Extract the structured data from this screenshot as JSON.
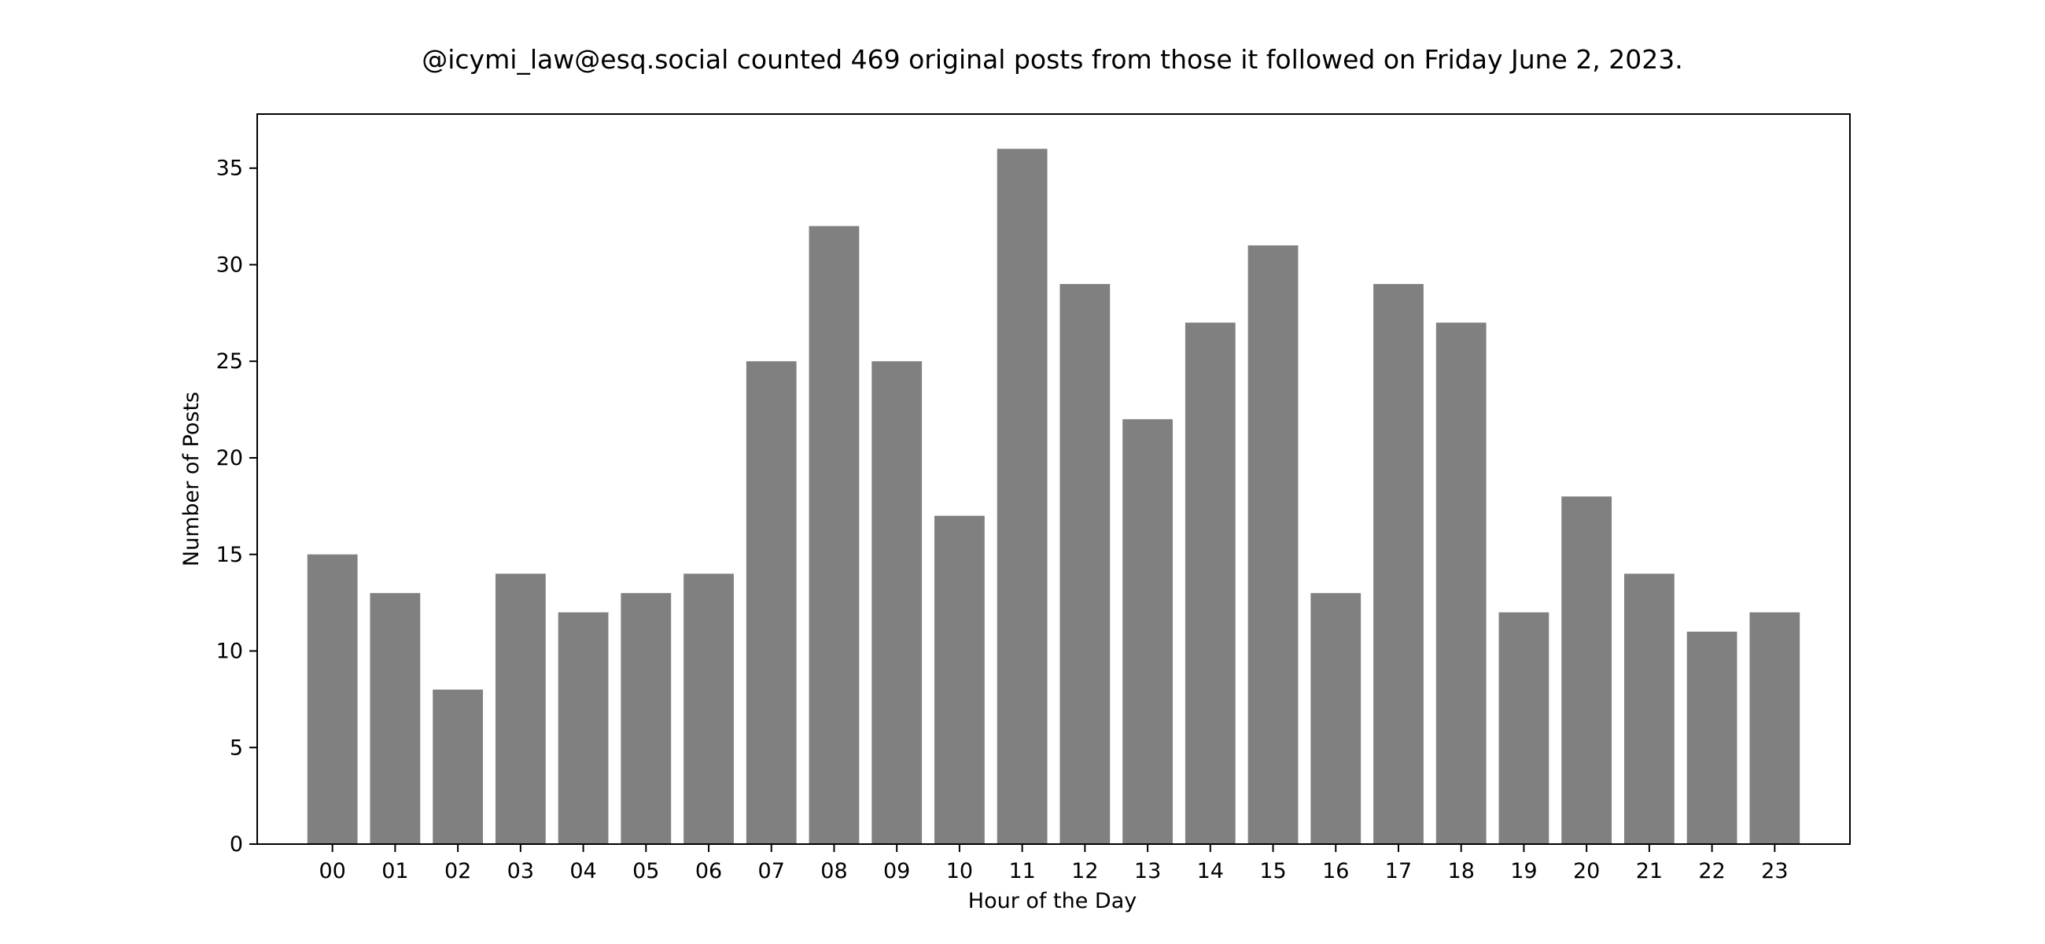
{
  "chart_data": {
    "type": "bar",
    "title": "@icymi_law@esq.social counted 469 original posts from those it followed on Friday June 2, 2023.",
    "xlabel": "Hour of the Day",
    "ylabel": "Number of Posts",
    "categories": [
      "00",
      "01",
      "02",
      "03",
      "04",
      "05",
      "06",
      "07",
      "08",
      "09",
      "10",
      "11",
      "12",
      "13",
      "14",
      "15",
      "16",
      "17",
      "18",
      "19",
      "20",
      "21",
      "22",
      "23"
    ],
    "values": [
      15,
      13,
      8,
      14,
      12,
      13,
      14,
      25,
      32,
      25,
      17,
      36,
      29,
      22,
      27,
      31,
      13,
      29,
      27,
      12,
      18,
      14,
      11,
      12
    ],
    "ylim": [
      0,
      37.8
    ],
    "yticks": [
      0,
      5,
      10,
      15,
      20,
      25,
      30,
      35
    ],
    "grid": false,
    "legend": "none",
    "bar_color": "#808080",
    "axis_color": "#000000",
    "background": "#ffffff"
  }
}
